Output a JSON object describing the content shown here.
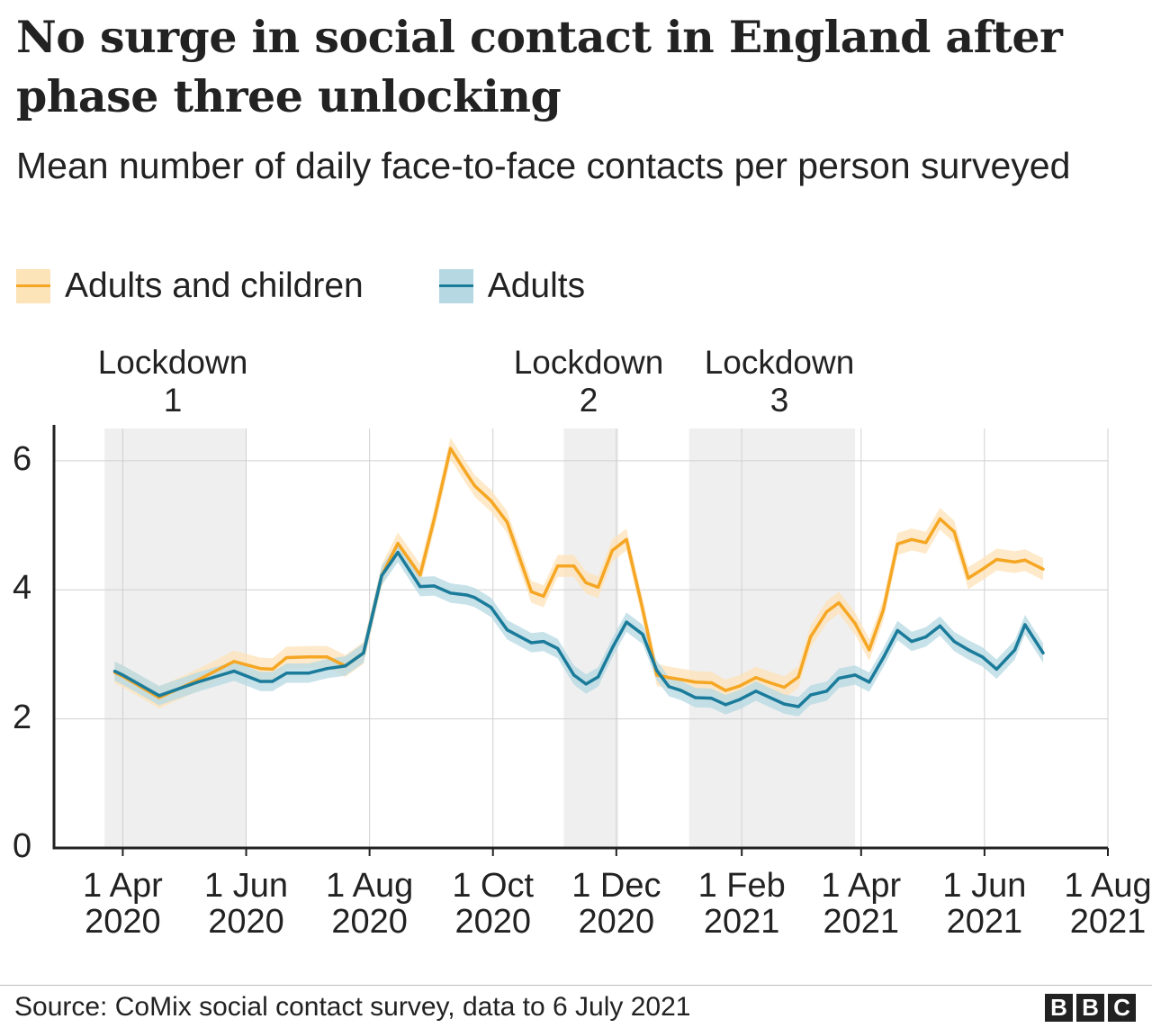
{
  "title": "No surge in social contact in England after phase three unlocking",
  "subtitle": "Mean number of daily face-to-face contacts per person surveyed",
  "legend": [
    {
      "label": "Adults and children",
      "color": "#f5a623",
      "band_color": "#fde3b8"
    },
    {
      "label": "Adults",
      "color": "#1a7b9a",
      "band_color": "#b5d8e3"
    }
  ],
  "lockdowns": [
    {
      "line1": "Lockdown",
      "line2": "1",
      "start": "2020-03-23",
      "end": "2020-06-01"
    },
    {
      "line1": "Lockdown",
      "line2": "2",
      "start": "2020-11-05",
      "end": "2020-12-02"
    },
    {
      "line1": "Lockdown",
      "line2": "3",
      "start": "2021-01-06",
      "end": "2021-03-29"
    }
  ],
  "chart_data": {
    "type": "line",
    "title": "No surge in social contact in England after phase three unlocking",
    "subtitle": "Mean number of daily face-to-face contacts per person surveyed",
    "xlabel": "",
    "ylabel": "",
    "xlim": [
      "2020-02-27",
      "2021-08-01"
    ],
    "ylim": [
      0,
      6.5
    ],
    "grid": true,
    "legend_position": "top-left",
    "x_ticks": [
      {
        "date": "2020-04-01",
        "line1": "1 Apr",
        "line2": "2020"
      },
      {
        "date": "2020-06-01",
        "line1": "1 Jun",
        "line2": "2020"
      },
      {
        "date": "2020-08-01",
        "line1": "1 Aug",
        "line2": "2020"
      },
      {
        "date": "2020-10-01",
        "line1": "1 Oct",
        "line2": "2020"
      },
      {
        "date": "2020-12-01",
        "line1": "1 Dec",
        "line2": "2020"
      },
      {
        "date": "2021-02-01",
        "line1": "1 Feb",
        "line2": "2021"
      },
      {
        "date": "2021-04-01",
        "line1": "1 Apr",
        "line2": "2021"
      },
      {
        "date": "2021-06-01",
        "line1": "1 Jun",
        "line2": "2021"
      },
      {
        "date": "2021-08-01",
        "line1": "1 Aug",
        "line2": "2021"
      }
    ],
    "y_ticks": [
      0,
      2,
      4,
      6
    ],
    "x": [
      "2020-03-28",
      "2020-04-01",
      "2020-04-19",
      "2020-05-08",
      "2020-05-26",
      "2020-06-08",
      "2020-06-14",
      "2020-06-21",
      "2020-07-02",
      "2020-07-11",
      "2020-07-20",
      "2020-07-29",
      "2020-08-07",
      "2020-08-15",
      "2020-08-26",
      "2020-09-02",
      "2020-09-10",
      "2020-09-18",
      "2020-09-22",
      "2020-09-30",
      "2020-10-08",
      "2020-10-20",
      "2020-10-26",
      "2020-11-02",
      "2020-11-10",
      "2020-11-16",
      "2020-11-22",
      "2020-11-29",
      "2020-12-06",
      "2020-12-14",
      "2020-12-21",
      "2020-12-27",
      "2021-01-02",
      "2021-01-09",
      "2021-01-17",
      "2021-01-24",
      "2021-01-31",
      "2021-02-08",
      "2021-02-15",
      "2021-02-22",
      "2021-03-01",
      "2021-03-07",
      "2021-03-15",
      "2021-03-21",
      "2021-03-29",
      "2021-04-05",
      "2021-04-12",
      "2021-04-19",
      "2021-04-26",
      "2021-05-03",
      "2021-05-10",
      "2021-05-17",
      "2021-05-24",
      "2021-05-31",
      "2021-06-07",
      "2021-06-16",
      "2021-06-21",
      "2021-06-30"
    ],
    "series": [
      {
        "name": "Adults and children",
        "color": "#f5a623",
        "band_halfwidth": 0.17,
        "values": [
          2.72,
          2.66,
          2.33,
          2.6,
          2.89,
          2.78,
          2.77,
          2.95,
          2.96,
          2.96,
          2.82,
          3.02,
          4.22,
          4.72,
          4.23,
          5.1,
          6.19,
          5.8,
          5.61,
          5.38,
          5.05,
          3.97,
          3.9,
          4.37,
          4.37,
          4.11,
          4.04,
          4.61,
          4.78,
          3.7,
          2.68,
          2.64,
          2.61,
          2.57,
          2.56,
          2.44,
          2.51,
          2.64,
          2.56,
          2.49,
          2.65,
          3.27,
          3.66,
          3.8,
          3.48,
          3.07,
          3.69,
          4.71,
          4.78,
          4.73,
          5.1,
          4.9,
          4.18,
          4.32,
          4.47,
          4.43,
          4.46,
          4.32
        ]
      },
      {
        "name": "Adults",
        "color": "#1a7b9a",
        "band_halfwidth": 0.15,
        "values": [
          2.74,
          2.68,
          2.36,
          2.57,
          2.74,
          2.58,
          2.58,
          2.71,
          2.71,
          2.78,
          2.82,
          3.02,
          4.22,
          4.58,
          4.05,
          4.06,
          3.95,
          3.92,
          3.88,
          3.73,
          3.38,
          3.18,
          3.2,
          3.09,
          2.68,
          2.54,
          2.65,
          3.1,
          3.5,
          3.31,
          2.75,
          2.5,
          2.44,
          2.33,
          2.32,
          2.22,
          2.3,
          2.43,
          2.33,
          2.23,
          2.19,
          2.37,
          2.43,
          2.63,
          2.68,
          2.57,
          2.95,
          3.37,
          3.2,
          3.27,
          3.44,
          3.2,
          3.07,
          2.96,
          2.77,
          3.07,
          3.46,
          3.02
        ]
      }
    ]
  },
  "footer": {
    "source": "Source: CoMix social contact survey, data to 6 July 2021",
    "logo": [
      "B",
      "B",
      "C"
    ]
  }
}
